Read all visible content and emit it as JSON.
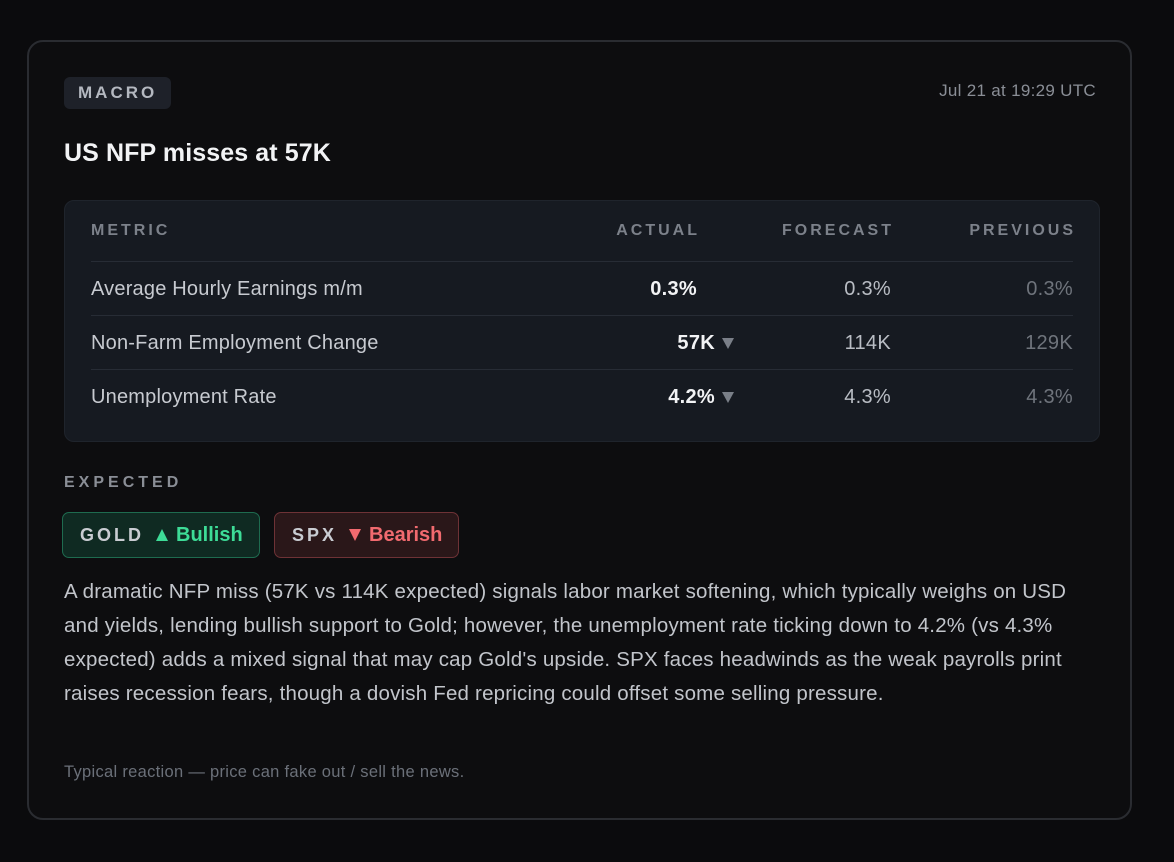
{
  "card": {
    "category_tag": "MACRO",
    "timestamp": "Jul 21 at 19:29 UTC",
    "headline": "US NFP misses at 57K"
  },
  "table": {
    "headers": {
      "metric": "METRIC",
      "actual": "ACTUAL",
      "forecast": "FORECAST",
      "previous": "PREVIOUS"
    },
    "rows": [
      {
        "metric": "Average Hourly Earnings m/m",
        "actual": "0.3%",
        "actual_direction": "none",
        "forecast": "0.3%",
        "previous": "0.3%"
      },
      {
        "metric": "Non-Farm Employment Change",
        "actual": "57K",
        "actual_direction": "down",
        "forecast": "114K",
        "previous": "129K"
      },
      {
        "metric": "Unemployment Rate",
        "actual": "4.2%",
        "actual_direction": "down",
        "forecast": "4.3%",
        "previous": "4.3%"
      }
    ]
  },
  "expected": {
    "label": "EXPECTED",
    "assets": [
      {
        "asset": "GOLD",
        "direction": "Bullish",
        "icon": "triangle-up-icon",
        "color": "#3ddc97"
      },
      {
        "asset": "SPX",
        "direction": "Bearish",
        "icon": "triangle-down-icon",
        "color": "#f16a6f"
      }
    ]
  },
  "analysis": "A dramatic NFP miss (57K vs 114K expected) signals labor market softening, which typically weighs on USD and yields, lending bullish support to Gold; however, the unemployment rate ticking down to 4.2% (vs 4.3% expected) adds a mixed signal that may cap Gold's upside. SPX faces headwinds as the weak payrolls print raises recession fears, though a dovish Fed repricing could offset some selling pressure.",
  "footnote": "Typical reaction — price can fake out / sell the news.",
  "colors": {
    "background": "#0b0b0d",
    "card": "#0d0d0f",
    "table_bg": "#161a21",
    "bullish": "#3ddc97",
    "bearish": "#f16a6f"
  }
}
